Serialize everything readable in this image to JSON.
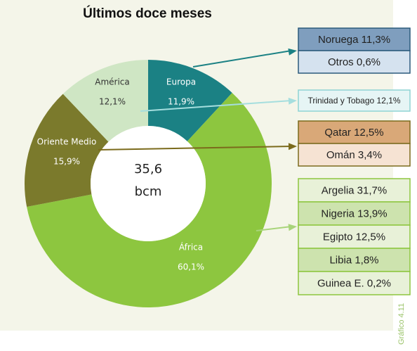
{
  "chart_data": {
    "type": "pie",
    "title": "Últimos doce meses",
    "categories": [
      "Europa",
      "África",
      "Oriente Medio",
      "América"
    ],
    "values": [
      11.9,
      60.1,
      15.9,
      12.1
    ],
    "value_labels": [
      "11,9%",
      "60,1%",
      "15,9%",
      "12,1%"
    ],
    "colors": [
      "#1b8184",
      "#8dc63f",
      "#7b7a2c",
      "#cfe6c4"
    ],
    "center_text": [
      "35,6",
      "bcm"
    ],
    "breakdowns": [
      [
        "Noruega 11,3%",
        "Otros 0,6%"
      ],
      [
        "Argelia 31,7%",
        "Nigeria 13,9%",
        "Egipto 12,5%",
        "Libia 1,8%",
        "Guinea E. 0,2%"
      ],
      [
        "Qatar 12,5%",
        "Omán 3,4%"
      ],
      [
        "Trinidad y Tobago 12,1%"
      ]
    ],
    "footnote": "Gráfico 4.11"
  }
}
